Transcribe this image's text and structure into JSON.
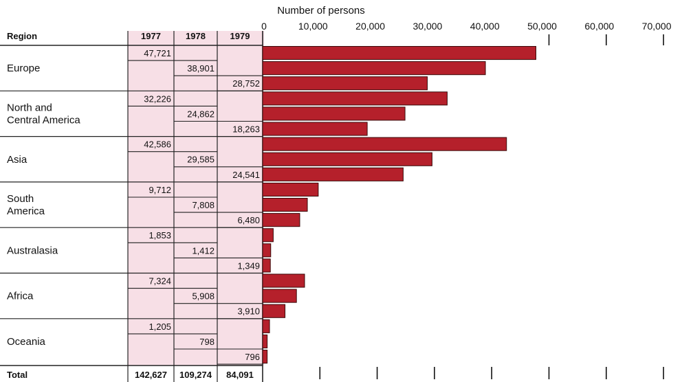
{
  "chart_data": {
    "type": "bar",
    "orientation": "horizontal",
    "xlabel": "Number of persons",
    "xlim": [
      0,
      70000
    ],
    "xticks": [
      0,
      10000,
      20000,
      30000,
      40000,
      50000,
      60000,
      70000
    ],
    "xtick_labels": [
      "0",
      "10,000",
      "20,000",
      "30,000",
      "40,000",
      "50,000",
      "60,000",
      "70,000"
    ],
    "region_header": "Region",
    "years": [
      "1977",
      "1978",
      "1979"
    ],
    "bar_color": "#b5202b",
    "table_color": "#f7dfe6",
    "regions": [
      {
        "name": "Europe",
        "values": [
          47721,
          38901,
          28752
        ],
        "labels": [
          "47,721",
          "38,901",
          "28,752"
        ]
      },
      {
        "name": "North and\nCentral America",
        "values": [
          32226,
          24862,
          18263
        ],
        "labels": [
          "32,226",
          "24,862",
          "18,263"
        ]
      },
      {
        "name": "Asia",
        "values": [
          42586,
          29585,
          24541
        ],
        "labels": [
          "42,586",
          "29,585",
          "24,541"
        ]
      },
      {
        "name": "South\nAmerica",
        "values": [
          9712,
          7808,
          6480
        ],
        "labels": [
          "9,712",
          "7,808",
          "6,480"
        ]
      },
      {
        "name": "Australasia",
        "values": [
          1853,
          1412,
          1349
        ],
        "labels": [
          "1,853",
          "1,412",
          "1,349"
        ]
      },
      {
        "name": "Africa",
        "values": [
          7324,
          5908,
          3910
        ],
        "labels": [
          "7,324",
          "5,908",
          "3,910"
        ]
      },
      {
        "name": "Oceania",
        "values": [
          1205,
          798,
          796
        ],
        "labels": [
          "1,205",
          "798",
          "796"
        ]
      }
    ],
    "total": {
      "name": "Total",
      "labels": [
        "142,627",
        "109,274",
        "84,091"
      ]
    }
  }
}
